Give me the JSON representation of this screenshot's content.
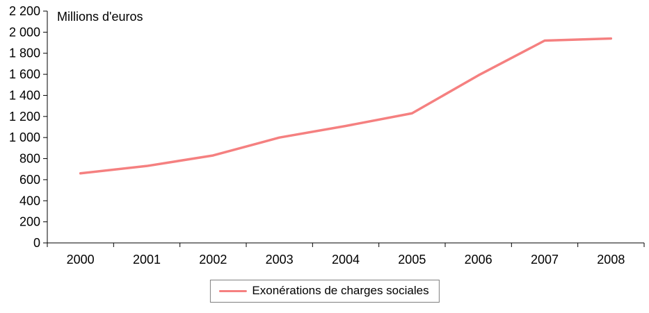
{
  "chart_data": {
    "type": "line",
    "title": "",
    "units_label": "Millions d'euros",
    "categories": [
      "2000",
      "2001",
      "2002",
      "2003",
      "2004",
      "2005",
      "2006",
      "2007",
      "2008"
    ],
    "series": [
      {
        "name": "Exonérations de charges sociales",
        "color": "#f58080",
        "values": [
          660,
          730,
          830,
          1000,
          1110,
          1230,
          1590,
          1920,
          1940
        ]
      }
    ],
    "xlabel": "",
    "ylabel": "",
    "ylim": [
      0,
      2200
    ],
    "ytick_step": 200,
    "ytick_labels": [
      "0",
      "200",
      "400",
      "600",
      "800",
      "1 000",
      "1 200",
      "1 400",
      "1 600",
      "1 800",
      "2 000",
      "2 200"
    ],
    "grid": "off",
    "legend_position": "bottom",
    "axis_color": "#000000"
  }
}
